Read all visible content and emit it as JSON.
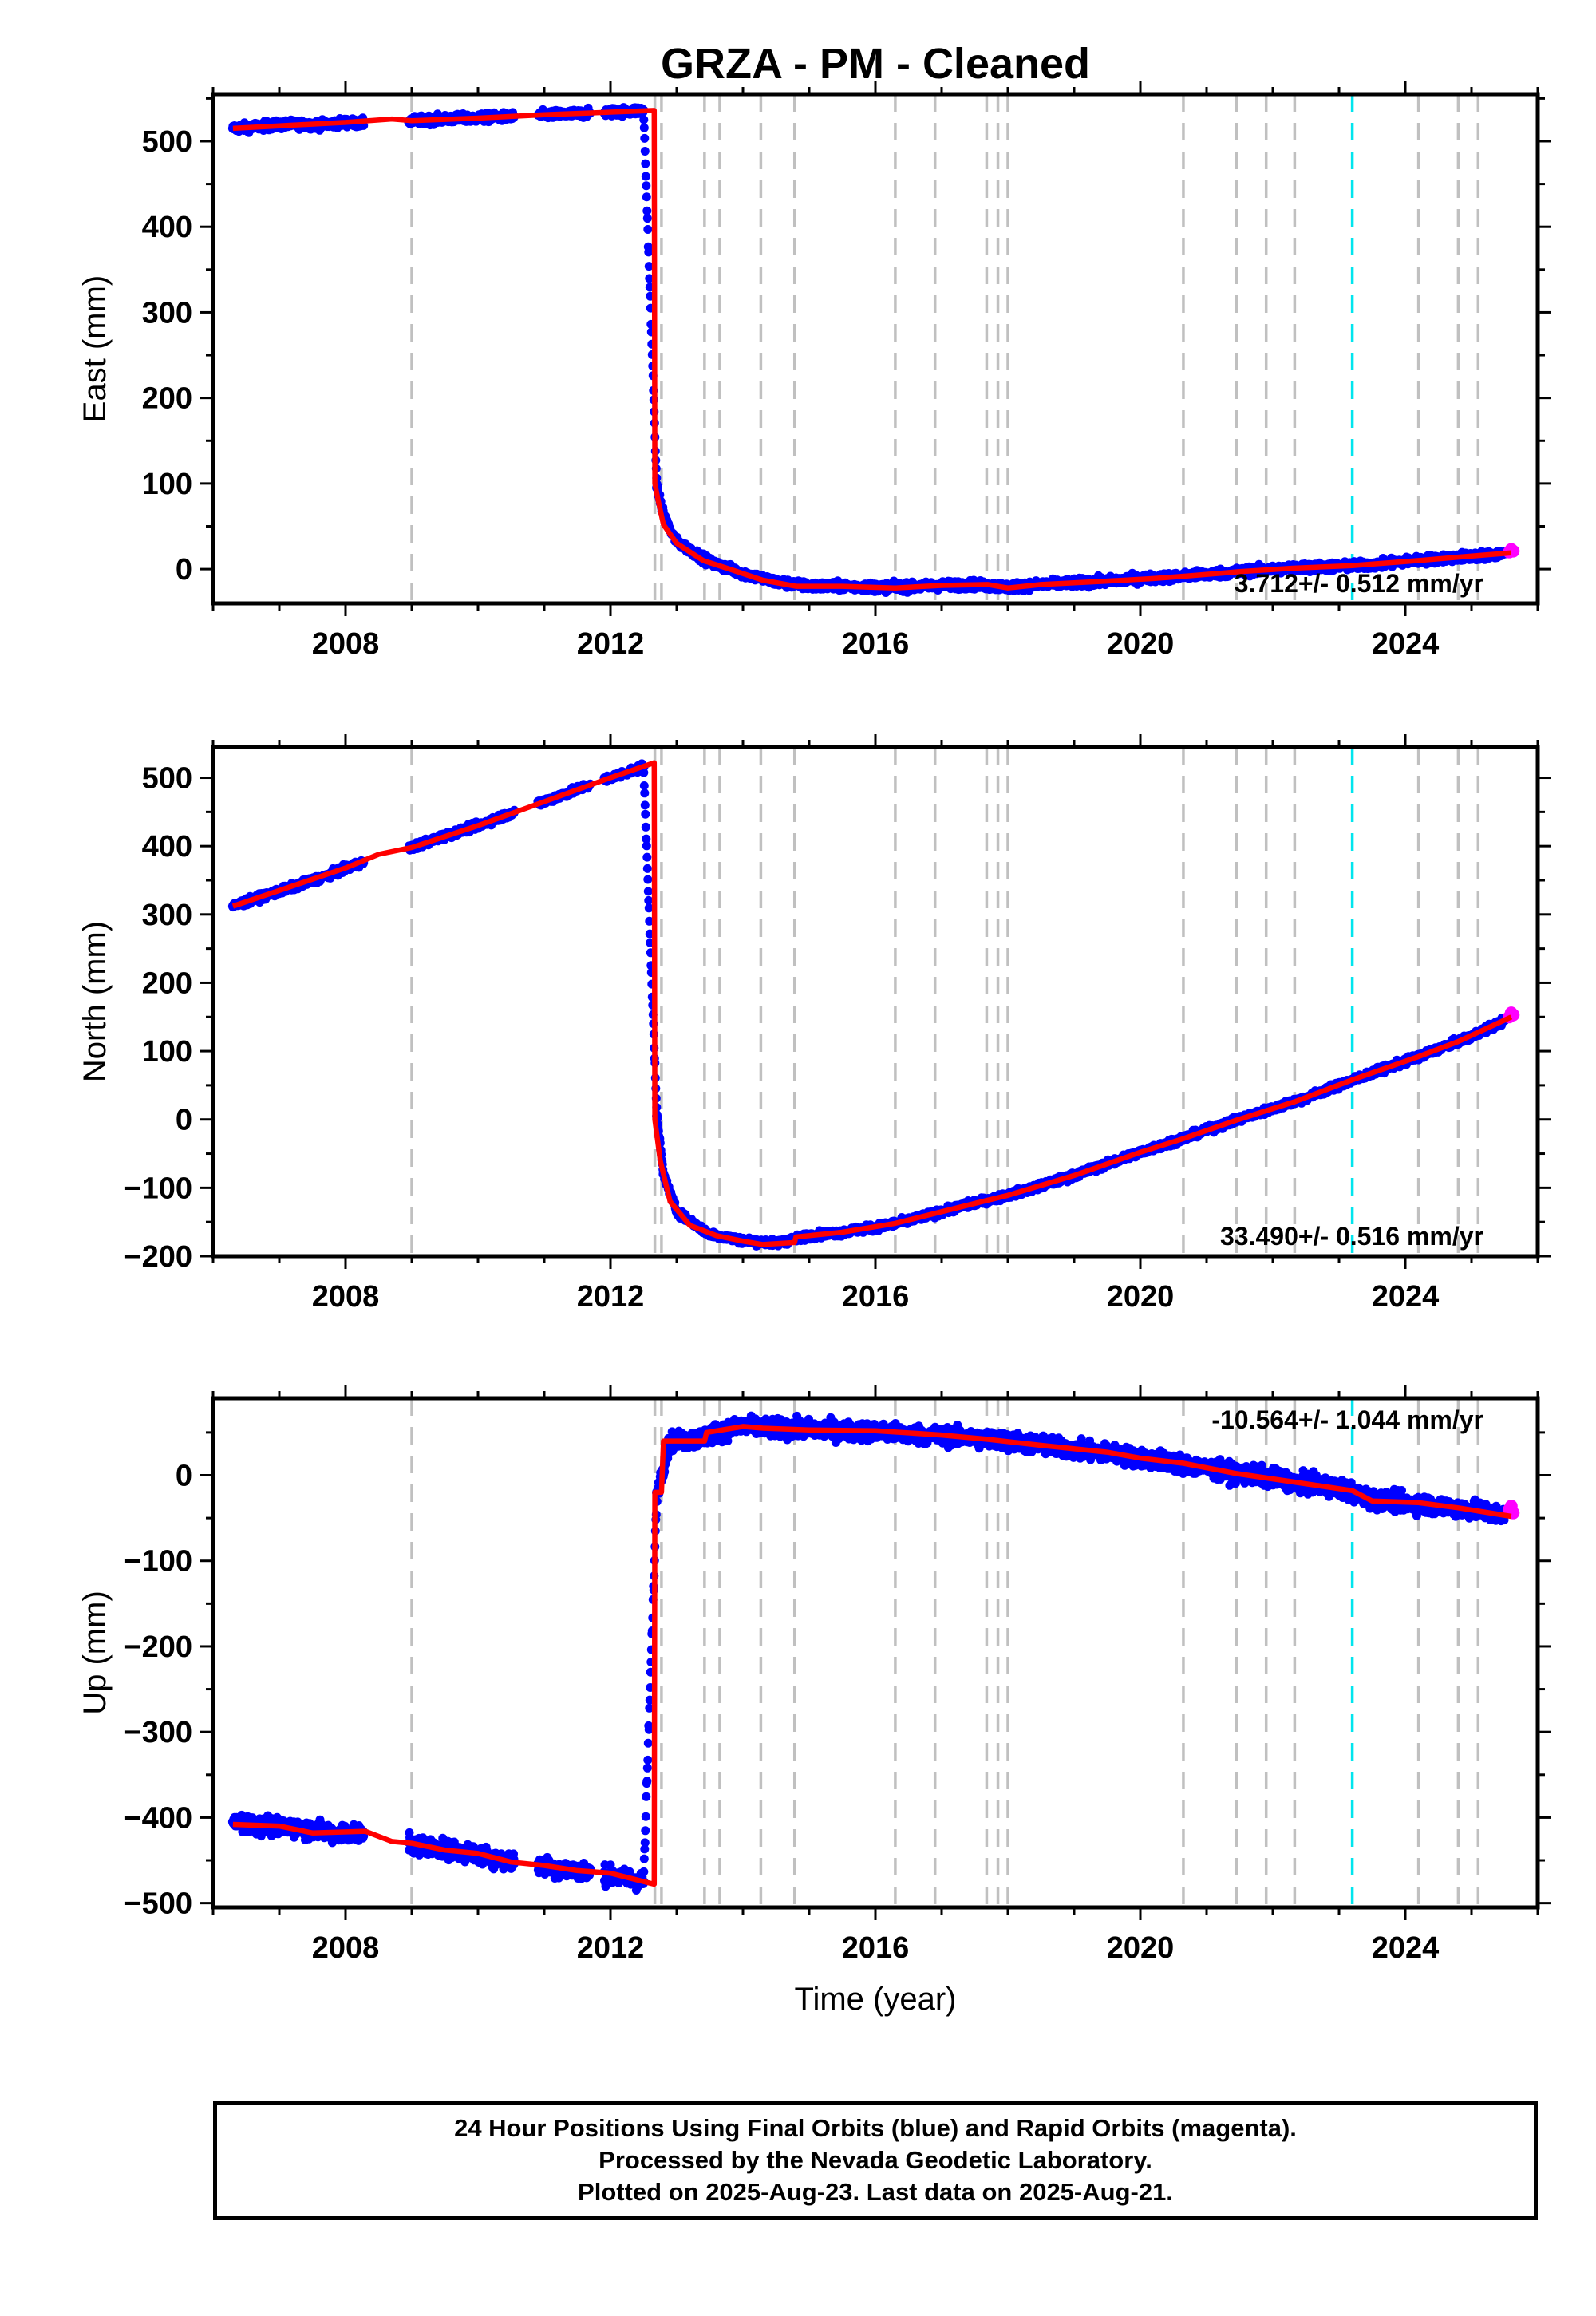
{
  "title": "GRZA  - PM - Cleaned",
  "xlabel": "Time (year)",
  "colors": {
    "final": "#0000ff",
    "rapid": "#ff00ff",
    "model": "#ff0000",
    "event": "#c0c0c0",
    "event_special": "#00e5ee"
  },
  "caption": [
    "24 Hour Positions Using Final Orbits (blue) and Rapid Orbits (magenta).",
    "Processed by the Nevada Geodetic Laboratory.",
    "Plotted on 2025-Aug-23. Last data on 2025-Aug-21."
  ],
  "chart_data": [
    {
      "type": "scatter",
      "component": "east",
      "ylabel": "East (mm)",
      "rate": "3.712+/- 0.512 mm/yr",
      "xlim": [
        2006.0,
        2026.0
      ],
      "ylim": [
        -40,
        555
      ],
      "xticks": [
        2008,
        2012,
        2016,
        2020,
        2024
      ],
      "yticks": [
        0,
        100,
        200,
        300,
        400,
        500
      ],
      "events": [
        2009.0,
        2012.67,
        2012.77,
        2013.42,
        2013.65,
        2014.27,
        2014.78,
        2016.3,
        2016.9,
        2017.68,
        2017.85,
        2018.0,
        2020.65,
        2021.45,
        2021.9,
        2022.33,
        2024.2,
        2024.8,
        2025.1
      ],
      "special_events": [
        2023.2
      ],
      "model": [
        [
          2006.3,
          515
        ],
        [
          2007.0,
          518
        ],
        [
          2008.0,
          522
        ],
        [
          2008.7,
          526
        ],
        [
          2009.0,
          524
        ],
        [
          2010.0,
          527
        ],
        [
          2011.0,
          531
        ],
        [
          2012.0,
          534
        ],
        [
          2012.66,
          536
        ],
        [
          2012.67,
          100
        ],
        [
          2012.72,
          80
        ],
        [
          2012.8,
          52
        ],
        [
          2013.0,
          30
        ],
        [
          2013.4,
          10
        ],
        [
          2013.8,
          0
        ],
        [
          2014.3,
          -13
        ],
        [
          2014.8,
          -20
        ],
        [
          2015.5,
          -20
        ],
        [
          2016.3,
          -22
        ],
        [
          2017.0,
          -19
        ],
        [
          2017.7,
          -18
        ],
        [
          2018.0,
          -22
        ],
        [
          2018.5,
          -18
        ],
        [
          2019.5,
          -14
        ],
        [
          2020.2,
          -11
        ],
        [
          2020.7,
          -8
        ],
        [
          2021.5,
          -3
        ],
        [
          2022.3,
          1
        ],
        [
          2023.2,
          4
        ],
        [
          2024.2,
          10
        ],
        [
          2024.8,
          14
        ],
        [
          2025.6,
          19
        ]
      ],
      "final_series": [
        [
          2006.3,
          515
        ],
        [
          2006.8,
          518
        ],
        [
          2007.2,
          520
        ],
        [
          2007.6,
          519
        ],
        [
          2008.0,
          522
        ],
        [
          2008.2,
          521
        ],
        [
          2009.0,
          524
        ],
        [
          2009.5,
          526
        ],
        [
          2010.0,
          527
        ],
        [
          2010.5,
          529
        ],
        [
          2011.0,
          531
        ],
        [
          2011.5,
          532
        ],
        [
          2012.0,
          534
        ],
        [
          2012.5,
          536
        ],
        [
          2012.7,
          95
        ],
        [
          2012.78,
          70
        ],
        [
          2012.9,
          45
        ],
        [
          2013.0,
          32
        ],
        [
          2013.5,
          8
        ],
        [
          2014.0,
          -5
        ],
        [
          2014.5,
          -15
        ],
        [
          2015.0,
          -20
        ],
        [
          2015.5,
          -20
        ],
        [
          2016.0,
          -21
        ],
        [
          2016.5,
          -21
        ],
        [
          2017.0,
          -19
        ],
        [
          2017.5,
          -18
        ],
        [
          2018.0,
          -21
        ],
        [
          2018.5,
          -18
        ],
        [
          2019.0,
          -16
        ],
        [
          2019.5,
          -14
        ],
        [
          2020.0,
          -11
        ],
        [
          2020.5,
          -9
        ],
        [
          2021.0,
          -6
        ],
        [
          2021.5,
          -3
        ],
        [
          2022.0,
          0
        ],
        [
          2022.5,
          2
        ],
        [
          2023.0,
          3
        ],
        [
          2023.5,
          5
        ],
        [
          2024.0,
          9
        ],
        [
          2024.5,
          12
        ],
        [
          2025.0,
          15
        ],
        [
          2025.5,
          18
        ]
      ],
      "rapid_series": [
        [
          2025.57,
          20
        ],
        [
          2025.6,
          23
        ],
        [
          2025.63,
          21
        ]
      ]
    },
    {
      "type": "scatter",
      "component": "north",
      "ylabel": "North (mm)",
      "rate": "33.490+/- 0.516 mm/yr",
      "xlim": [
        2006.0,
        2026.0
      ],
      "ylim": [
        -200,
        545
      ],
      "xticks": [
        2008,
        2012,
        2016,
        2020,
        2024
      ],
      "yticks": [
        -200,
        -100,
        0,
        100,
        200,
        300,
        400,
        500
      ],
      "events": [
        2009.0,
        2012.67,
        2012.77,
        2013.42,
        2013.65,
        2014.27,
        2014.78,
        2016.3,
        2016.9,
        2017.68,
        2017.85,
        2018.0,
        2020.65,
        2021.45,
        2021.9,
        2022.33,
        2024.2,
        2024.8,
        2025.1
      ],
      "special_events": [
        2023.2
      ],
      "model": [
        [
          2006.3,
          312
        ],
        [
          2007.0,
          335
        ],
        [
          2008.0,
          368
        ],
        [
          2008.5,
          388
        ],
        [
          2009.0,
          398
        ],
        [
          2010.0,
          430
        ],
        [
          2011.0,
          465
        ],
        [
          2012.0,
          500
        ],
        [
          2012.66,
          522
        ],
        [
          2012.67,
          0
        ],
        [
          2012.75,
          -60
        ],
        [
          2012.9,
          -120
        ],
        [
          2013.2,
          -155
        ],
        [
          2013.6,
          -170
        ],
        [
          2014.0,
          -178
        ],
        [
          2014.3,
          -183
        ],
        [
          2014.78,
          -180
        ],
        [
          2014.8,
          -172
        ],
        [
          2015.5,
          -165
        ],
        [
          2016.3,
          -152
        ],
        [
          2017.0,
          -135
        ],
        [
          2017.7,
          -118
        ],
        [
          2018.0,
          -111
        ],
        [
          2019.0,
          -82
        ],
        [
          2020.0,
          -48
        ],
        [
          2020.65,
          -28
        ],
        [
          2021.45,
          -1
        ],
        [
          2022.33,
          26
        ],
        [
          2023.2,
          58
        ],
        [
          2024.2,
          92
        ],
        [
          2024.8,
          114
        ],
        [
          2025.6,
          150
        ]
      ],
      "final_series": [
        [
          2006.3,
          312
        ],
        [
          2006.7,
          325
        ],
        [
          2007.2,
          340
        ],
        [
          2007.7,
          356
        ],
        [
          2008.2,
          374
        ],
        [
          2009.0,
          398
        ],
        [
          2009.5,
          415
        ],
        [
          2010.0,
          430
        ],
        [
          2010.5,
          448
        ],
        [
          2011.0,
          465
        ],
        [
          2011.5,
          483
        ],
        [
          2012.0,
          500
        ],
        [
          2012.5,
          516
        ],
        [
          2012.7,
          5
        ],
        [
          2012.8,
          -80
        ],
        [
          2013.0,
          -135
        ],
        [
          2013.5,
          -168
        ],
        [
          2014.0,
          -177
        ],
        [
          2014.5,
          -181
        ],
        [
          2015.0,
          -170
        ],
        [
          2015.5,
          -165
        ],
        [
          2016.0,
          -158
        ],
        [
          2016.5,
          -148
        ],
        [
          2017.0,
          -135
        ],
        [
          2017.5,
          -122
        ],
        [
          2018.0,
          -111
        ],
        [
          2018.5,
          -97
        ],
        [
          2019.0,
          -82
        ],
        [
          2019.5,
          -65
        ],
        [
          2020.0,
          -48
        ],
        [
          2020.5,
          -32
        ],
        [
          2021.0,
          -16
        ],
        [
          2021.5,
          1
        ],
        [
          2022.0,
          16
        ],
        [
          2022.5,
          32
        ],
        [
          2023.0,
          50
        ],
        [
          2023.5,
          68
        ],
        [
          2024.0,
          85
        ],
        [
          2024.5,
          103
        ],
        [
          2025.0,
          122
        ],
        [
          2025.5,
          145
        ]
      ],
      "rapid_series": [
        [
          2025.57,
          150
        ],
        [
          2025.6,
          156
        ],
        [
          2025.63,
          153
        ]
      ]
    },
    {
      "type": "scatter",
      "component": "up",
      "ylabel": "Up (mm)",
      "rate": "-10.564+/- 1.044 mm/yr",
      "xlim": [
        2006.0,
        2026.0
      ],
      "ylim": [
        -505,
        90
      ],
      "xticks": [
        2008,
        2012,
        2016,
        2020,
        2024
      ],
      "yticks": [
        -500,
        -400,
        -300,
        -200,
        -100,
        0
      ],
      "events": [
        2009.0,
        2012.67,
        2012.77,
        2013.42,
        2013.65,
        2014.27,
        2014.78,
        2016.3,
        2016.9,
        2017.68,
        2017.85,
        2018.0,
        2020.65,
        2021.45,
        2021.9,
        2022.33,
        2024.2,
        2024.8,
        2025.1
      ],
      "special_events": [
        2023.2
      ],
      "model": [
        [
          2006.3,
          -408
        ],
        [
          2007.0,
          -410
        ],
        [
          2007.5,
          -418
        ],
        [
          2008.3,
          -416
        ],
        [
          2008.7,
          -428
        ],
        [
          2009.0,
          -430
        ],
        [
          2009.5,
          -438
        ],
        [
          2010.0,
          -442
        ],
        [
          2010.5,
          -452
        ],
        [
          2011.0,
          -456
        ],
        [
          2011.5,
          -462
        ],
        [
          2012.0,
          -465
        ],
        [
          2012.66,
          -478
        ],
        [
          2012.67,
          -20
        ],
        [
          2012.77,
          -20
        ],
        [
          2012.8,
          40
        ],
        [
          2013.42,
          40
        ],
        [
          2013.45,
          50
        ],
        [
          2014.0,
          57
        ],
        [
          2014.3,
          55
        ],
        [
          2015.0,
          53
        ],
        [
          2016.0,
          52
        ],
        [
          2017.0,
          47
        ],
        [
          2017.7,
          42
        ],
        [
          2018.5,
          35
        ],
        [
          2019.5,
          27
        ],
        [
          2020.0,
          20
        ],
        [
          2020.65,
          14
        ],
        [
          2021.45,
          2
        ],
        [
          2022.33,
          -8
        ],
        [
          2023.2,
          -18
        ],
        [
          2023.5,
          -30
        ],
        [
          2024.2,
          -32
        ],
        [
          2024.8,
          -38
        ],
        [
          2025.6,
          -48
        ]
      ],
      "final_series": [
        [
          2006.3,
          -405
        ],
        [
          2006.8,
          -410
        ],
        [
          2007.3,
          -412
        ],
        [
          2007.8,
          -418
        ],
        [
          2008.2,
          -418
        ],
        [
          2009.0,
          -430
        ],
        [
          2009.5,
          -437
        ],
        [
          2010.0,
          -443
        ],
        [
          2010.4,
          -450
        ],
        [
          2011.0,
          -457
        ],
        [
          2011.5,
          -462
        ],
        [
          2012.0,
          -468
        ],
        [
          2012.5,
          -475
        ],
        [
          2012.7,
          -20
        ],
        [
          2012.9,
          40
        ],
        [
          2013.3,
          42
        ],
        [
          2013.6,
          50
        ],
        [
          2014.0,
          57
        ],
        [
          2014.5,
          55
        ],
        [
          2015.0,
          54
        ],
        [
          2015.5,
          52
        ],
        [
          2016.0,
          51
        ],
        [
          2016.5,
          48
        ],
        [
          2017.0,
          46
        ],
        [
          2017.5,
          43
        ],
        [
          2018.0,
          40
        ],
        [
          2018.5,
          35
        ],
        [
          2019.0,
          30
        ],
        [
          2019.5,
          26
        ],
        [
          2020.0,
          20
        ],
        [
          2020.5,
          15
        ],
        [
          2021.0,
          8
        ],
        [
          2021.5,
          2
        ],
        [
          2022.0,
          -3
        ],
        [
          2022.5,
          -10
        ],
        [
          2023.0,
          -15
        ],
        [
          2023.5,
          -28
        ],
        [
          2024.0,
          -32
        ],
        [
          2024.5,
          -36
        ],
        [
          2025.0,
          -40
        ],
        [
          2025.5,
          -47
        ]
      ],
      "rapid_series": [
        [
          2025.57,
          -40
        ],
        [
          2025.6,
          -36
        ],
        [
          2025.63,
          -44
        ]
      ]
    }
  ]
}
